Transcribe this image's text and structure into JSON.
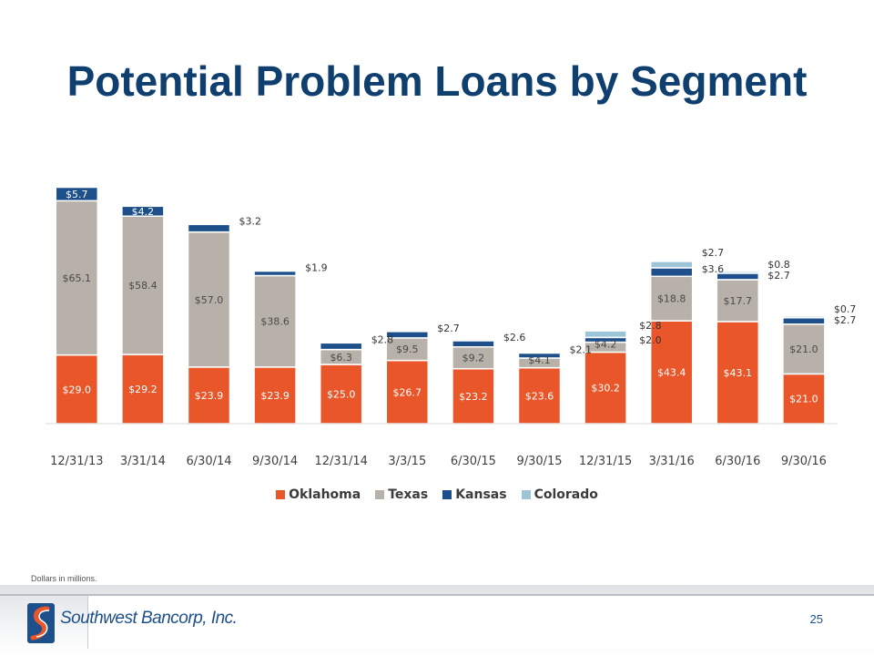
{
  "slide": {
    "title": "Potential Problem Loans by Segment",
    "footnote": "Dollars in millions.",
    "page_number": "25",
    "logo_text": "Southwest Bancorp, Inc."
  },
  "colors": {
    "title": "#0f3f6e",
    "Oklahoma": "#e8562a",
    "Texas": "#b7b1a9",
    "Kansas": "#1d4f8a",
    "Colorado": "#9cc6d8"
  },
  "chart_data": {
    "type": "bar",
    "stacked": true,
    "categories": [
      "12/31/13",
      "3/31/14",
      "6/30/14",
      "9/30/14",
      "12/31/14",
      "3/3/15",
      "6/30/15",
      "9/30/15",
      "12/31/15",
      "3/31/16",
      "6/30/16",
      "9/30/16"
    ],
    "series": [
      {
        "name": "Oklahoma",
        "values": [
          29.0,
          29.2,
          23.9,
          23.9,
          25.0,
          26.7,
          23.2,
          23.6,
          30.2,
          43.4,
          43.1,
          21.0
        ],
        "labels": [
          "$29.0",
          "$29.2",
          "$23.9",
          "$23.9",
          "$25.0",
          "$26.7",
          "$23.2",
          "$23.6",
          "$30.2",
          "$43.4",
          "$43.1",
          "$21.0"
        ]
      },
      {
        "name": "Texas",
        "values": [
          65.1,
          58.4,
          57.0,
          38.6,
          6.3,
          9.5,
          9.2,
          4.1,
          4.2,
          18.8,
          17.7,
          21.0
        ],
        "labels": [
          "$65.1",
          "$58.4",
          "$57.0",
          "$38.6",
          "$6.3",
          "$9.5",
          "$9.2",
          "$4.1",
          "$4.2",
          "$18.8",
          "$17.7",
          "$21.0"
        ]
      },
      {
        "name": "Kansas",
        "values": [
          5.7,
          4.2,
          3.2,
          1.9,
          2.8,
          2.7,
          2.6,
          2.1,
          2.0,
          3.6,
          2.7,
          2.7
        ],
        "labels": [
          "$5.7",
          "$4.2",
          "$3.2",
          "$1.9",
          "$2.8",
          "$2.7",
          "$2.6",
          "$2.1",
          "$2.0",
          "$3.6",
          "$2.7",
          "$2.7"
        ]
      },
      {
        "name": "Colorado",
        "values": [
          0,
          0,
          0,
          0,
          0,
          0,
          0,
          0,
          2.8,
          2.7,
          0.8,
          0.7
        ],
        "labels": [
          "",
          "",
          "",
          "",
          "",
          "",
          "",
          "",
          "$2.8",
          "$2.7",
          "$0.8",
          "$0.7"
        ]
      }
    ],
    "ylim": [
      0,
      100
    ],
    "legend_position": "bottom",
    "grid": false
  }
}
